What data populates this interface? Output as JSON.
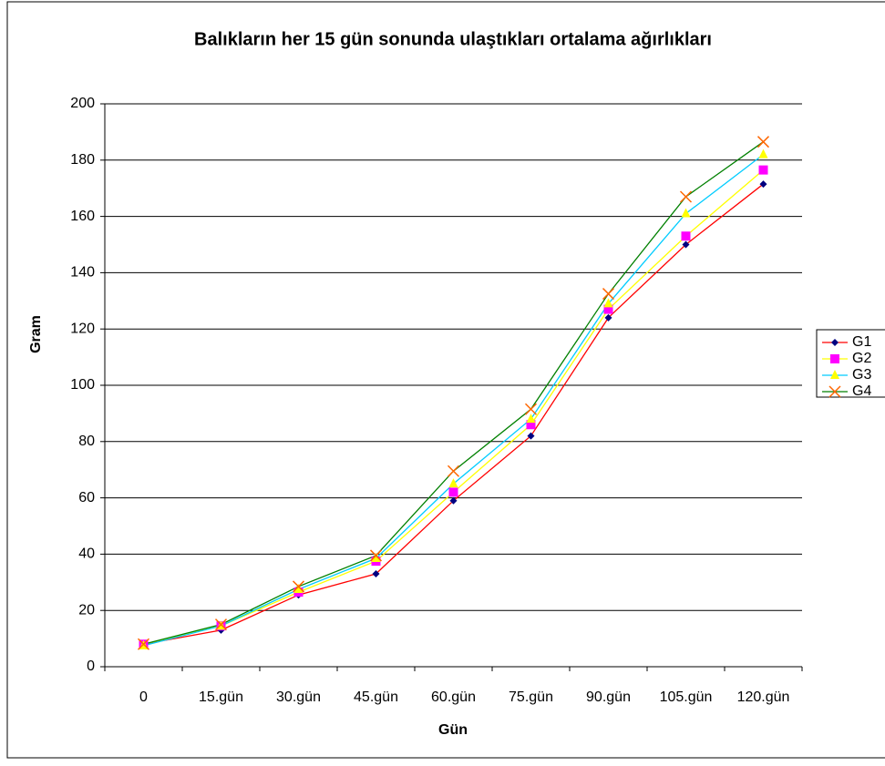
{
  "chart_data": {
    "type": "line",
    "title": "Balıkların her 15 gün sonunda ulaştıkları ortalama ağırlıkları",
    "x_label": "Gün",
    "y_label": "Gram",
    "categories": [
      "0",
      "15.gün",
      "30.gün",
      "45.gün",
      "60.gün",
      "75.gün",
      "90.gün",
      "105.gün",
      "120.gün"
    ],
    "series": [
      {
        "name": "G1",
        "color": "#ff0000",
        "marker": "diamond",
        "marker_color": "#000080",
        "values": [
          8,
          13,
          25.5,
          33,
          59,
          82,
          124,
          150,
          171.5
        ]
      },
      {
        "name": "G2",
        "color": "#ffff00",
        "marker": "square",
        "marker_color": "#ff00ff",
        "values": [
          8,
          14.5,
          26.5,
          37.5,
          62,
          86,
          127,
          153,
          176.5
        ]
      },
      {
        "name": "G3",
        "color": "#00ccff",
        "marker": "triangle",
        "marker_color": "#ffff00",
        "values": [
          7.5,
          14.5,
          27.5,
          38.5,
          65,
          88,
          129,
          161,
          182
        ]
      },
      {
        "name": "G4",
        "color": "#008000",
        "marker": "x",
        "marker_color": "#ff6600",
        "values": [
          8,
          15,
          28.5,
          39.5,
          69.5,
          91.5,
          132.5,
          167,
          186.5
        ]
      }
    ],
    "ylim": [
      0,
      200
    ],
    "yticks": [
      0,
      20,
      40,
      60,
      80,
      100,
      120,
      140,
      160,
      180,
      200
    ],
    "grid": true,
    "legend": "right"
  }
}
